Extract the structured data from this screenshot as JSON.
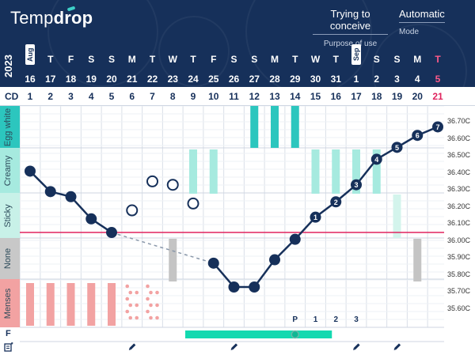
{
  "app": {
    "logo_light": "Temp",
    "logo_bold": "drop"
  },
  "header": {
    "purpose": {
      "value": "Trying to conceive",
      "label": "Purpose of use"
    },
    "mode": {
      "value": "Automatic",
      "label": "Mode"
    }
  },
  "year": "2023",
  "days": [
    {
      "name": "T",
      "date": "16",
      "month": "Aug"
    },
    {
      "name": "T",
      "date": "17"
    },
    {
      "name": "F",
      "date": "18"
    },
    {
      "name": "S",
      "date": "19"
    },
    {
      "name": "S",
      "date": "20"
    },
    {
      "name": "M",
      "date": "21"
    },
    {
      "name": "T",
      "date": "22"
    },
    {
      "name": "W",
      "date": "23"
    },
    {
      "name": "T",
      "date": "24"
    },
    {
      "name": "F",
      "date": "25"
    },
    {
      "name": "S",
      "date": "26"
    },
    {
      "name": "S",
      "date": "27"
    },
    {
      "name": "M",
      "date": "28"
    },
    {
      "name": "T",
      "date": "29"
    },
    {
      "name": "W",
      "date": "30"
    },
    {
      "name": "T",
      "date": "31"
    },
    {
      "name": "F",
      "date": "1",
      "month": "Sep"
    },
    {
      "name": "S",
      "date": "2"
    },
    {
      "name": "S",
      "date": "3"
    },
    {
      "name": "M",
      "date": "4"
    },
    {
      "name": "T",
      "date": "5",
      "highlight": true
    }
  ],
  "cycle_label": "CD",
  "cycle_days": [
    "1",
    "2",
    "3",
    "4",
    "5",
    "6",
    "7",
    "8",
    "9",
    "10",
    "11",
    "12",
    "13",
    "14",
    "15",
    "16",
    "17",
    "18",
    "19",
    "20",
    "21"
  ],
  "categories": [
    "Egg white",
    "Creamy",
    "Sticky",
    "None",
    "Menses"
  ],
  "y_ticks": [
    "36.70C",
    "36.60C",
    "36.50C",
    "36.40C",
    "36.30C",
    "36.20C",
    "36.10C",
    "36.00C",
    "35.90C",
    "35.80C",
    "35.70C",
    "35.60C"
  ],
  "chart_data": {
    "type": "line",
    "ylim": [
      35.5,
      36.75
    ],
    "coverline": 36.05,
    "temperatures": [
      {
        "cd": 1,
        "temp": 36.41,
        "style": "filled"
      },
      {
        "cd": 2,
        "temp": 36.29,
        "style": "filled"
      },
      {
        "cd": 3,
        "temp": 36.26,
        "style": "filled"
      },
      {
        "cd": 4,
        "temp": 36.13,
        "style": "filled"
      },
      {
        "cd": 5,
        "temp": 36.05,
        "style": "filled"
      },
      {
        "cd": 6,
        "temp": 36.18,
        "style": "open"
      },
      {
        "cd": 7,
        "temp": 36.35,
        "style": "open"
      },
      {
        "cd": 8,
        "temp": 36.33,
        "style": "open"
      },
      {
        "cd": 9,
        "temp": 36.22,
        "style": "open"
      },
      {
        "cd": 10,
        "temp": 35.87,
        "style": "filled"
      },
      {
        "cd": 11,
        "temp": 35.73,
        "style": "filled"
      },
      {
        "cd": 12,
        "temp": 35.73,
        "style": "filled"
      },
      {
        "cd": 13,
        "temp": 35.89,
        "style": "filled"
      },
      {
        "cd": 14,
        "temp": 36.01,
        "style": "filled"
      },
      {
        "cd": 15,
        "temp": 36.14,
        "style": "filled",
        "label": "1"
      },
      {
        "cd": 16,
        "temp": 36.23,
        "style": "filled",
        "label": "2"
      },
      {
        "cd": 17,
        "temp": 36.33,
        "style": "filled",
        "label": "3"
      },
      {
        "cd": 18,
        "temp": 36.48,
        "style": "filled",
        "label": "4"
      },
      {
        "cd": 19,
        "temp": 36.55,
        "style": "filled",
        "label": "5"
      },
      {
        "cd": 20,
        "temp": 36.62,
        "style": "filled",
        "label": "6"
      },
      {
        "cd": 21,
        "temp": 36.67,
        "style": "filled",
        "label": "7"
      }
    ],
    "mucus": [
      {
        "cd": 1,
        "type": "menses"
      },
      {
        "cd": 2,
        "type": "menses"
      },
      {
        "cd": 3,
        "type": "menses"
      },
      {
        "cd": 4,
        "type": "menses"
      },
      {
        "cd": 5,
        "type": "menses"
      },
      {
        "cd": 6,
        "type": "spotting"
      },
      {
        "cd": 7,
        "type": "spotting"
      },
      {
        "cd": 8,
        "type": "none"
      },
      {
        "cd": 9,
        "type": "creamy"
      },
      {
        "cd": 10,
        "type": "creamy"
      },
      {
        "cd": 12,
        "type": "egg-white"
      },
      {
        "cd": 13,
        "type": "egg-white"
      },
      {
        "cd": 14,
        "type": "egg-white"
      },
      {
        "cd": 15,
        "type": "creamy"
      },
      {
        "cd": 16,
        "type": "creamy"
      },
      {
        "cd": 17,
        "type": "creamy"
      },
      {
        "cd": 18,
        "type": "creamy"
      },
      {
        "cd": 19,
        "type": "sticky"
      },
      {
        "cd": 20,
        "type": "none"
      }
    ],
    "peak_labels": [
      {
        "cd": 14,
        "text": "P"
      },
      {
        "cd": 15,
        "text": "1"
      },
      {
        "cd": 16,
        "text": "2"
      },
      {
        "cd": 17,
        "text": "3"
      }
    ],
    "fertile_window": {
      "start_cd": 9,
      "end_cd": 16,
      "marker_cd": 14
    },
    "notes_cd": [
      6,
      11,
      17,
      19
    ]
  },
  "row_labels": {
    "fertile": "F"
  },
  "colors": {
    "header": "#16305a",
    "egg_white": "#2cc6be",
    "creamy": "#a6eadf",
    "sticky": "#d3f4ec",
    "none": "#c4c4c4",
    "menses": "#f2a2a2",
    "coverline": "#e0245e",
    "fertile": "#14d9b0"
  }
}
